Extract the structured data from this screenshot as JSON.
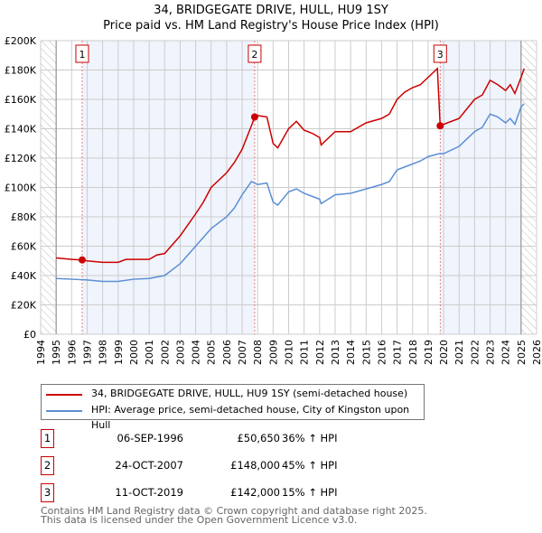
{
  "chart_data": {
    "type": "line",
    "title": "34, BRIDGEGATE DRIVE, HULL, HU9 1SY",
    "subtitle": "Price paid vs. HM Land Registry's House Price Index (HPI)",
    "xlim": [
      1994,
      2026
    ],
    "ylim": [
      0,
      200000
    ],
    "yticks": [
      0,
      20000,
      40000,
      60000,
      80000,
      100000,
      120000,
      140000,
      160000,
      180000,
      200000
    ],
    "ytick_labels": [
      "£0",
      "£20K",
      "£40K",
      "£60K",
      "£80K",
      "£100K",
      "£120K",
      "£140K",
      "£160K",
      "£180K",
      "£200K"
    ],
    "xticks": [
      1994,
      1995,
      1996,
      1997,
      1998,
      1999,
      2000,
      2001,
      2002,
      2003,
      2004,
      2005,
      2006,
      2007,
      2008,
      2009,
      2010,
      2011,
      2012,
      2013,
      2014,
      2015,
      2016,
      2017,
      2018,
      2019,
      2020,
      2021,
      2022,
      2023,
      2024,
      2025,
      2026
    ],
    "grid": true,
    "data_range": [
      1995,
      2025
    ],
    "shaded_periods": [
      [
        1996.68,
        2007.81
      ],
      [
        2019.78,
        2025.0
      ]
    ],
    "series": [
      {
        "name": "34, BRIDGEGATE DRIVE, HULL, HU9 1SY (semi-detached house)",
        "color": "#cc0000",
        "x": [
          1995,
          1996,
          1996.68,
          1997,
          1998,
          1999,
          1999.5,
          2000,
          2001,
          2001.5,
          2002,
          2003,
          2004,
          2004.5,
          2005,
          2006,
          2006.5,
          2007,
          2007.6,
          2007.81,
          2008,
          2008.6,
          2009,
          2009.3,
          2010,
          2010.5,
          2011,
          2011.5,
          2012,
          2012.1,
          2013,
          2014,
          2015,
          2016,
          2016.5,
          2017,
          2017.5,
          2018,
          2018.5,
          2019,
          2019.6,
          2019.78,
          2020,
          2021,
          2022,
          2022.5,
          2023,
          2023.5,
          2024,
          2024.3,
          2024.6,
          2025,
          2025.2
        ],
        "y": [
          52000,
          51000,
          50650,
          50000,
          49000,
          49000,
          51000,
          51000,
          51000,
          54000,
          55000,
          67000,
          82000,
          90000,
          100000,
          110000,
          117000,
          126000,
          142000,
          148000,
          149000,
          148000,
          130000,
          127000,
          140000,
          145000,
          139000,
          137000,
          134000,
          129000,
          138000,
          138000,
          144000,
          147000,
          150000,
          160000,
          165000,
          168000,
          170000,
          175000,
          181000,
          142000,
          143000,
          147000,
          160000,
          163000,
          173000,
          170000,
          166000,
          170000,
          164000,
          175000,
          181000
        ]
      },
      {
        "name": "HPI: Average price, semi-detached house, City of Kingston upon Hull",
        "color": "#5b8fd4",
        "x": [
          1995,
          1996,
          1997,
          1998,
          1999,
          2000,
          2001,
          2002,
          2003,
          2004,
          2005,
          2006,
          2006.5,
          2007,
          2007.6,
          2008,
          2008.6,
          2009,
          2009.3,
          2010,
          2010.5,
          2011,
          2011.5,
          2012,
          2012.1,
          2013,
          2014,
          2015,
          2016,
          2016.5,
          2017,
          2018,
          2018.5,
          2019,
          2019.7,
          2020,
          2021,
          2022,
          2022.5,
          2023,
          2023.5,
          2024,
          2024.3,
          2024.6,
          2025,
          2025.2
        ],
        "y": [
          38000,
          37500,
          37000,
          36000,
          36000,
          37500,
          38000,
          40000,
          48000,
          60000,
          72000,
          80000,
          86000,
          95000,
          104000,
          102000,
          103000,
          90000,
          88000,
          97000,
          99000,
          96000,
          94000,
          92000,
          89000,
          95000,
          96000,
          99000,
          102000,
          104000,
          112000,
          116000,
          118000,
          121000,
          123000,
          123000,
          128000,
          138000,
          141000,
          150000,
          148000,
          144000,
          147000,
          143000,
          155000,
          157000
        ]
      }
    ],
    "sales": [
      {
        "label": "1",
        "x": 1996.68,
        "y": 50650,
        "date": "06-SEP-1996",
        "price": "£50,650",
        "hpi": "36% ↑ HPI"
      },
      {
        "label": "2",
        "x": 2007.81,
        "y": 148000,
        "date": "24-OCT-2007",
        "price": "£148,000",
        "hpi": "45% ↑ HPI"
      },
      {
        "label": "3",
        "x": 2019.78,
        "y": 142000,
        "date": "11-OCT-2019",
        "price": "£142,000",
        "hpi": "15% ↑ HPI"
      }
    ]
  },
  "footer": {
    "line1": "Contains HM Land Registry data © Crown copyright and database right 2025.",
    "line2": "This data is licensed under the Open Government Licence v3.0."
  }
}
